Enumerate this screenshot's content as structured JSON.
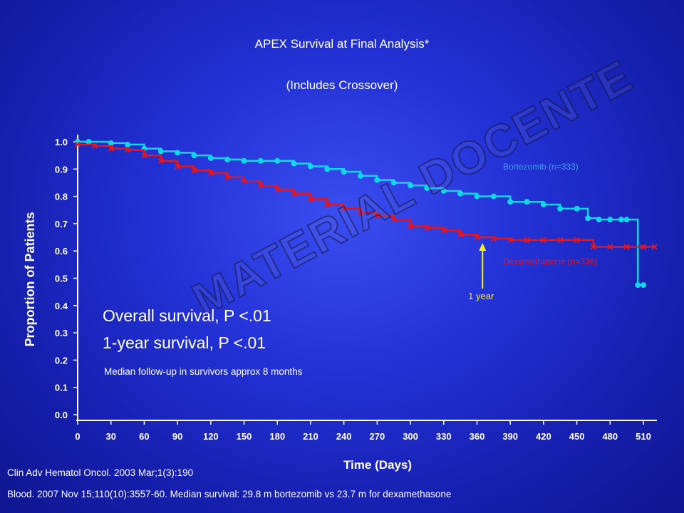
{
  "title_line1": "APEX Survival at Final Analysis*",
  "title_line2": "(Includes Crossover)",
  "stat_line1": "Overall survival, P <.01",
  "stat_line2": "1-year survival, P <.01",
  "followup_note": "Median follow-up in survivors approx 8 months",
  "citation1": "Clin Adv Hematol Oncol. 2003 Mar;1(3):190",
  "citation2": "Blood. 2007 Nov 15;110(10):3557-60. Median survival: 29.8 m bortezomib vs 23.7 m for dexamethasone",
  "watermark": "MATERIAL DOCENTE",
  "colors": {
    "bortezomib": "#12d6e8",
    "dexamethasone": "#e8141a",
    "annotation": "#f5f01a",
    "background": "#1c28c8"
  },
  "chart_data": {
    "type": "line",
    "step": true,
    "xlabel": "Time (Days)",
    "ylabel": "Proportion of Patients",
    "xlim": [
      0,
      525
    ],
    "ylim": [
      0,
      1.0
    ],
    "x_ticks": [
      "0",
      "30",
      "60",
      "90",
      "120",
      "150",
      "180",
      "210",
      "240",
      "270",
      "300",
      "330",
      "360",
      "390",
      "420",
      "450",
      "480",
      "510"
    ],
    "y_ticks": [
      "0.0",
      "0.1",
      "0.2",
      "0.3",
      "0.4",
      "0.5",
      "0.6",
      "0.7",
      "0.8",
      "0.9",
      "1.0"
    ],
    "series": [
      {
        "name": "Bortezomib (n=333)",
        "marker": "circle",
        "x": [
          0,
          10,
          30,
          45,
          60,
          75,
          90,
          105,
          120,
          135,
          150,
          165,
          180,
          195,
          210,
          225,
          240,
          255,
          270,
          285,
          300,
          315,
          330,
          345,
          360,
          375,
          390,
          405,
          420,
          435,
          450,
          460,
          470,
          480,
          490,
          495,
          505,
          510
        ],
        "y": [
          1.0,
          1.0,
          0.995,
          0.99,
          0.975,
          0.965,
          0.96,
          0.95,
          0.94,
          0.935,
          0.93,
          0.93,
          0.93,
          0.92,
          0.91,
          0.9,
          0.89,
          0.875,
          0.86,
          0.85,
          0.84,
          0.83,
          0.82,
          0.81,
          0.8,
          0.8,
          0.78,
          0.78,
          0.77,
          0.755,
          0.755,
          0.72,
          0.715,
          0.715,
          0.715,
          0.715,
          0.475,
          0.475
        ]
      },
      {
        "name": "Dexamethasone (n=336)",
        "marker": "x",
        "x": [
          0,
          15,
          30,
          45,
          60,
          75,
          90,
          105,
          120,
          135,
          150,
          165,
          180,
          195,
          210,
          225,
          240,
          255,
          270,
          285,
          300,
          315,
          330,
          345,
          360,
          375,
          390,
          405,
          420,
          435,
          450,
          465,
          480,
          495,
          510,
          520
        ],
        "y": [
          0.99,
          0.985,
          0.975,
          0.97,
          0.95,
          0.93,
          0.91,
          0.895,
          0.885,
          0.87,
          0.855,
          0.84,
          0.825,
          0.81,
          0.79,
          0.77,
          0.755,
          0.74,
          0.73,
          0.715,
          0.69,
          0.685,
          0.675,
          0.66,
          0.65,
          0.645,
          0.64,
          0.64,
          0.64,
          0.64,
          0.64,
          0.615,
          0.615,
          0.615,
          0.615,
          0.615
        ]
      }
    ],
    "annotations": [
      {
        "text": "1 year",
        "x": 365
      }
    ]
  }
}
